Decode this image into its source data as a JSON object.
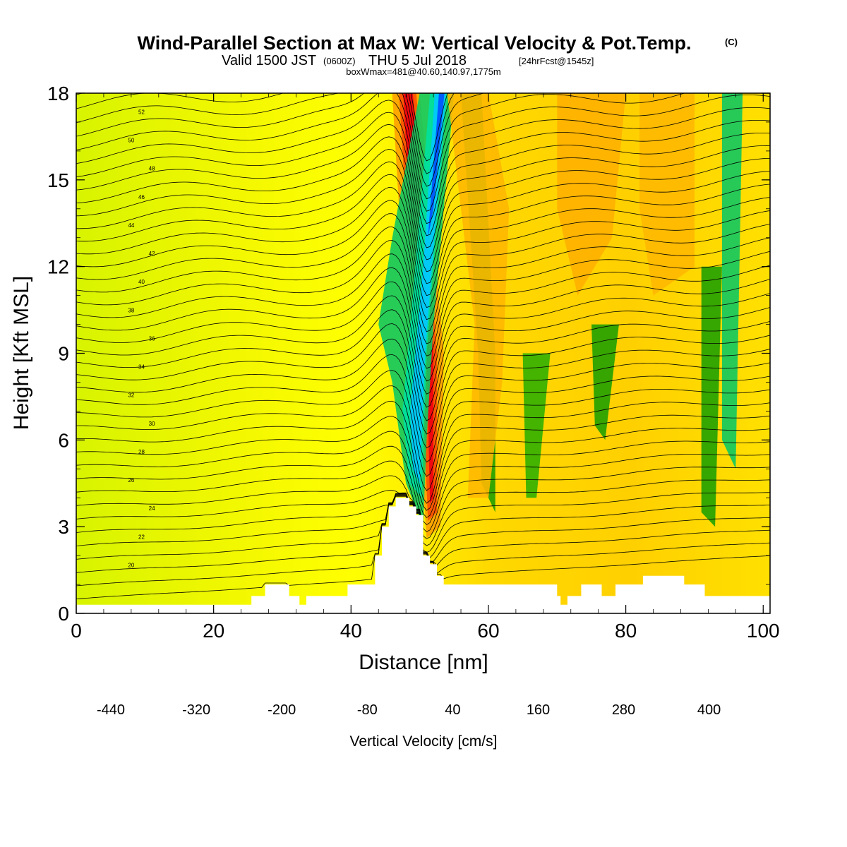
{
  "title": {
    "main": "Wind-Parallel Section at Max W: Vertical Velocity & Pot.Temp.",
    "copyright": "(C)",
    "valid_line_a": "Valid 1500 JST",
    "valid_line_b": "(0600Z)",
    "valid_line_c": "THU 5 Jul 2018",
    "valid_line_d": "[24hrFcst@1545z]",
    "box_info": "boxWmax=481@40.60,140.97,1775m"
  },
  "chart_data": {
    "type": "heatmap",
    "xlabel": "Distance [nm]",
    "ylabel": "Height [Kft MSL]",
    "xlim": [
      0,
      101
    ],
    "ylim": [
      0,
      18
    ],
    "x_ticks": [
      "0",
      "20",
      "40",
      "60",
      "80",
      "100"
    ],
    "y_ticks": [
      "0",
      "3",
      "6",
      "9",
      "12",
      "15",
      "18"
    ],
    "colorbar": {
      "title": "Vertical Velocity [cm/s]",
      "labels": [
        "-440",
        "-320",
        "-200",
        "-80",
        "40",
        "160",
        "280",
        "400"
      ],
      "colors": [
        "#0000ff",
        "#0050ff",
        "#0090ff",
        "#00c8ff",
        "#00f0e8",
        "#00e0a0",
        "#10c860",
        "#00b030",
        "#20a000",
        "#90d000",
        "#c8f000",
        "#ffff00",
        "#ffe000",
        "#ffc000",
        "#ffa000",
        "#ff8000",
        "#ff5000",
        "#ff2000",
        "#ee0010",
        "#b00040",
        "#800060",
        "#500090"
      ]
    },
    "terrain_nm_kft": [
      [
        0,
        0.3
      ],
      [
        25.5,
        0.3
      ],
      [
        25.5,
        0.6
      ],
      [
        27.5,
        0.6
      ],
      [
        27.5,
        1.0
      ],
      [
        31,
        1.0
      ],
      [
        31,
        0.6
      ],
      [
        32.5,
        0.6
      ],
      [
        32.5,
        0.3
      ],
      [
        33.5,
        0.3
      ],
      [
        33.5,
        0.6
      ],
      [
        39.5,
        0.6
      ],
      [
        39.5,
        1.0
      ],
      [
        43.5,
        1.0
      ],
      [
        43.5,
        2.0
      ],
      [
        44.5,
        2.0
      ],
      [
        44.5,
        3.0
      ],
      [
        45.5,
        3.0
      ],
      [
        45.5,
        3.7
      ],
      [
        46.5,
        3.7
      ],
      [
        46.5,
        4.0
      ],
      [
        48.5,
        4.0
      ],
      [
        48.5,
        3.7
      ],
      [
        49.5,
        3.7
      ],
      [
        49.5,
        3.4
      ],
      [
        50.5,
        3.4
      ],
      [
        50.5,
        2.0
      ],
      [
        51.5,
        2.0
      ],
      [
        51.5,
        1.7
      ],
      [
        52.5,
        1.7
      ],
      [
        52.5,
        1.3
      ],
      [
        53.5,
        1.3
      ],
      [
        53.5,
        1.0
      ],
      [
        55.5,
        1.0
      ],
      [
        55.5,
        1.0
      ],
      [
        70,
        1.0
      ],
      [
        70,
        0.6
      ],
      [
        70.5,
        0.6
      ],
      [
        70.5,
        0.3
      ],
      [
        71.5,
        0.3
      ],
      [
        71.5,
        0.6
      ],
      [
        73.5,
        0.6
      ],
      [
        73.5,
        1.0
      ],
      [
        76.5,
        1.0
      ],
      [
        76.5,
        0.6
      ],
      [
        78.5,
        0.6
      ],
      [
        78.5,
        1.0
      ],
      [
        82.5,
        1.0
      ],
      [
        82.5,
        1.3
      ],
      [
        88.5,
        1.3
      ],
      [
        88.5,
        1.0
      ],
      [
        91.5,
        1.0
      ],
      [
        91.5,
        0.6
      ],
      [
        101,
        0.6
      ]
    ],
    "theta_contour_labels": [
      "20",
      "22",
      "24",
      "26",
      "28",
      "30",
      "32",
      "34",
      "36",
      "38",
      "40",
      "42",
      "44",
      "46",
      "48",
      "50",
      "52"
    ]
  }
}
